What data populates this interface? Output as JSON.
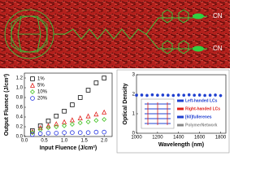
{
  "banner": {
    "labels": [
      "CN",
      "CN"
    ]
  },
  "chart_data": [
    {
      "type": "scatter",
      "xlabel": "Input Fluence (J/cm²)",
      "ylabel": "Output Fluence (J/cm²)",
      "xlim": [
        0,
        2.2
      ],
      "ylim": [
        0,
        1.3
      ],
      "xticks": [
        {
          "value": 0,
          "label": "0.0"
        },
        0.5,
        {
          "value": 1,
          "label": "1.0"
        },
        1.5,
        {
          "value": 2,
          "label": "2.0"
        }
      ],
      "yticks": [
        {
          "value": 0,
          "label": "0.0"
        },
        0.2,
        0.4,
        0.6,
        0.8,
        {
          "value": 1,
          "label": "1.0"
        },
        1.2
      ],
      "x": [
        0.2,
        0.4,
        0.6,
        0.8,
        1.0,
        1.2,
        1.4,
        1.6,
        1.8,
        2.0
      ],
      "series": [
        {
          "name": "1%",
          "color": "#111111",
          "marker": "square",
          "values": [
            0.12,
            0.22,
            0.32,
            0.42,
            0.52,
            0.65,
            0.8,
            0.95,
            1.1,
            1.2
          ]
        },
        {
          "name": "5%",
          "color": "#e0201a",
          "marker": "triangle",
          "values": [
            0.1,
            0.18,
            0.22,
            0.26,
            0.3,
            0.34,
            0.38,
            0.42,
            0.46,
            0.5
          ]
        },
        {
          "name": "10%",
          "color": "#40c020",
          "marker": "diamond",
          "values": [
            0.08,
            0.14,
            0.18,
            0.2,
            0.22,
            0.25,
            0.28,
            0.3,
            0.33,
            0.35
          ]
        },
        {
          "name": "20%",
          "color": "#2030e0",
          "marker": "circle",
          "values": [
            0.04,
            0.06,
            0.07,
            0.07,
            0.08,
            0.08,
            0.08,
            0.08,
            0.09,
            0.09
          ]
        }
      ]
    },
    {
      "type": "scatter",
      "xlabel": "Wavelength (nm)",
      "ylabel": "Optical Density",
      "xlim": [
        1000,
        1850
      ],
      "ylim": [
        0,
        3
      ],
      "xticks": [
        1000,
        1200,
        1400,
        1600,
        1800
      ],
      "yticks": [
        0,
        1,
        2,
        3
      ],
      "x": [
        1000,
        1050,
        1100,
        1150,
        1200,
        1250,
        1300,
        1350,
        1400,
        1450,
        1500,
        1550,
        1600,
        1650,
        1700,
        1750,
        1800
      ],
      "series": [
        {
          "color": "#2040d0",
          "marker": "filled-circle",
          "values": [
            1.95,
            1.96,
            1.94,
            1.97,
            1.95,
            1.96,
            1.95,
            1.94,
            1.96,
            1.95,
            1.97,
            1.95,
            1.96,
            1.94,
            1.95,
            1.96,
            1.93
          ],
          "errors": [
            0.08,
            0.07,
            0.08,
            0.07,
            0.08,
            0.07,
            0.08,
            0.07,
            0.08,
            0.07,
            0.08,
            0.07,
            0.08,
            0.07,
            0.08,
            0.07,
            0.08
          ]
        }
      ],
      "inset_legend": [
        {
          "label": "Left-handed LCs",
          "color": "#2040d0"
        },
        {
          "label": "Right-handed LCs",
          "color": "#e0201a"
        },
        {
          "label": "[60]fullerenes",
          "color": "#2040d0"
        },
        {
          "label": "PolymerNetwork",
          "color": "#888888"
        }
      ]
    }
  ]
}
